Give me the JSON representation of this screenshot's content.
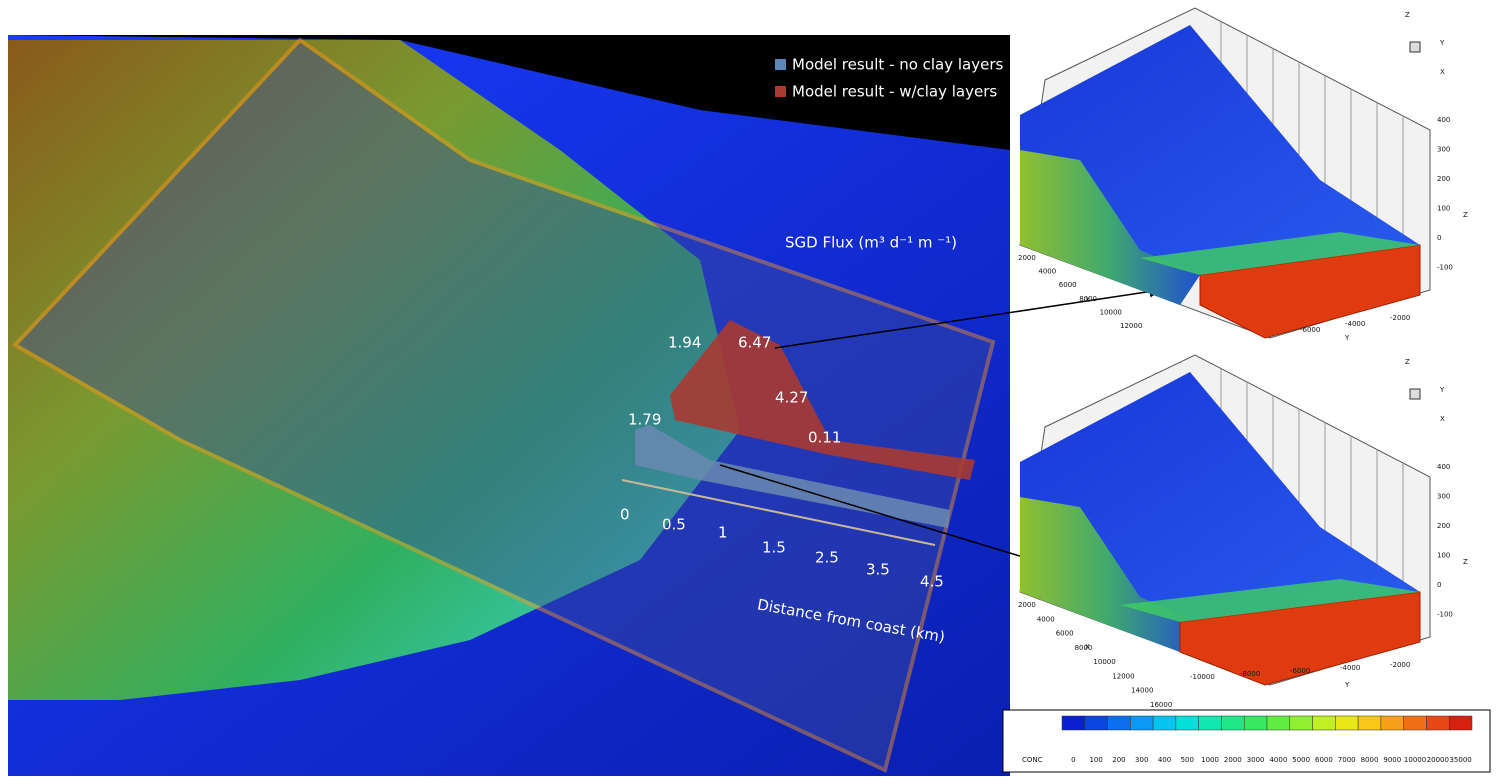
{
  "legend": [
    {
      "label": "Model result - no clay layers",
      "color": "#5b86b8"
    },
    {
      "label": "Model result - w/clay layers",
      "color": "#a83a32"
    }
  ],
  "flux_title": "SGD Flux (m³ d⁻¹ m ⁻¹)",
  "flux_labels": {
    "w_clay": [
      1.94,
      6.47,
      4.27,
      0.11
    ],
    "no_clay": [
      1.79
    ]
  },
  "distance_ticks": [
    0,
    0.5,
    1,
    1.5,
    2.5,
    3.5,
    4.5
  ],
  "distance_label": "Distance from coast (km)",
  "panels": [
    {
      "z_ticks": [
        400,
        300,
        200,
        100,
        0,
        -100
      ],
      "z_label": "Z",
      "x_ticks": [
        2000,
        4000,
        6000,
        8000,
        10000,
        12000
      ],
      "x_label": "X",
      "y_ticks": [
        -2000,
        -4000,
        -6000
      ],
      "y_label": "Y",
      "triad": [
        "Z",
        "Y",
        "X"
      ]
    },
    {
      "z_ticks": [
        400,
        300,
        200,
        100,
        0,
        -100
      ],
      "z_label": "Z",
      "x_ticks": [
        2000,
        4000,
        6000,
        8000,
        10000,
        12000,
        14000,
        16000
      ],
      "x_label": "X",
      "y_ticks": [
        -2000,
        -4000,
        -6000,
        -8000,
        -10000
      ],
      "y_label": "Y",
      "triad": [
        "Z",
        "Y",
        "X"
      ]
    }
  ],
  "colorbar": {
    "title": "CONC",
    "labels": [
      0,
      100,
      200,
      300,
      400,
      500,
      1000,
      2000,
      3000,
      4000,
      5000,
      6000,
      7000,
      8000,
      9000,
      10000,
      20000,
      35000
    ],
    "colors": [
      "#0a1fd0",
      "#0b45e0",
      "#0b6ff0",
      "#0a9af5",
      "#06c4f0",
      "#05e0d8",
      "#10e8b0",
      "#20e888",
      "#38e860",
      "#60ec40",
      "#90f030",
      "#c0f020",
      "#e8e818",
      "#f8c818",
      "#f8a018",
      "#f07018",
      "#e84818",
      "#d82010"
    ]
  }
}
